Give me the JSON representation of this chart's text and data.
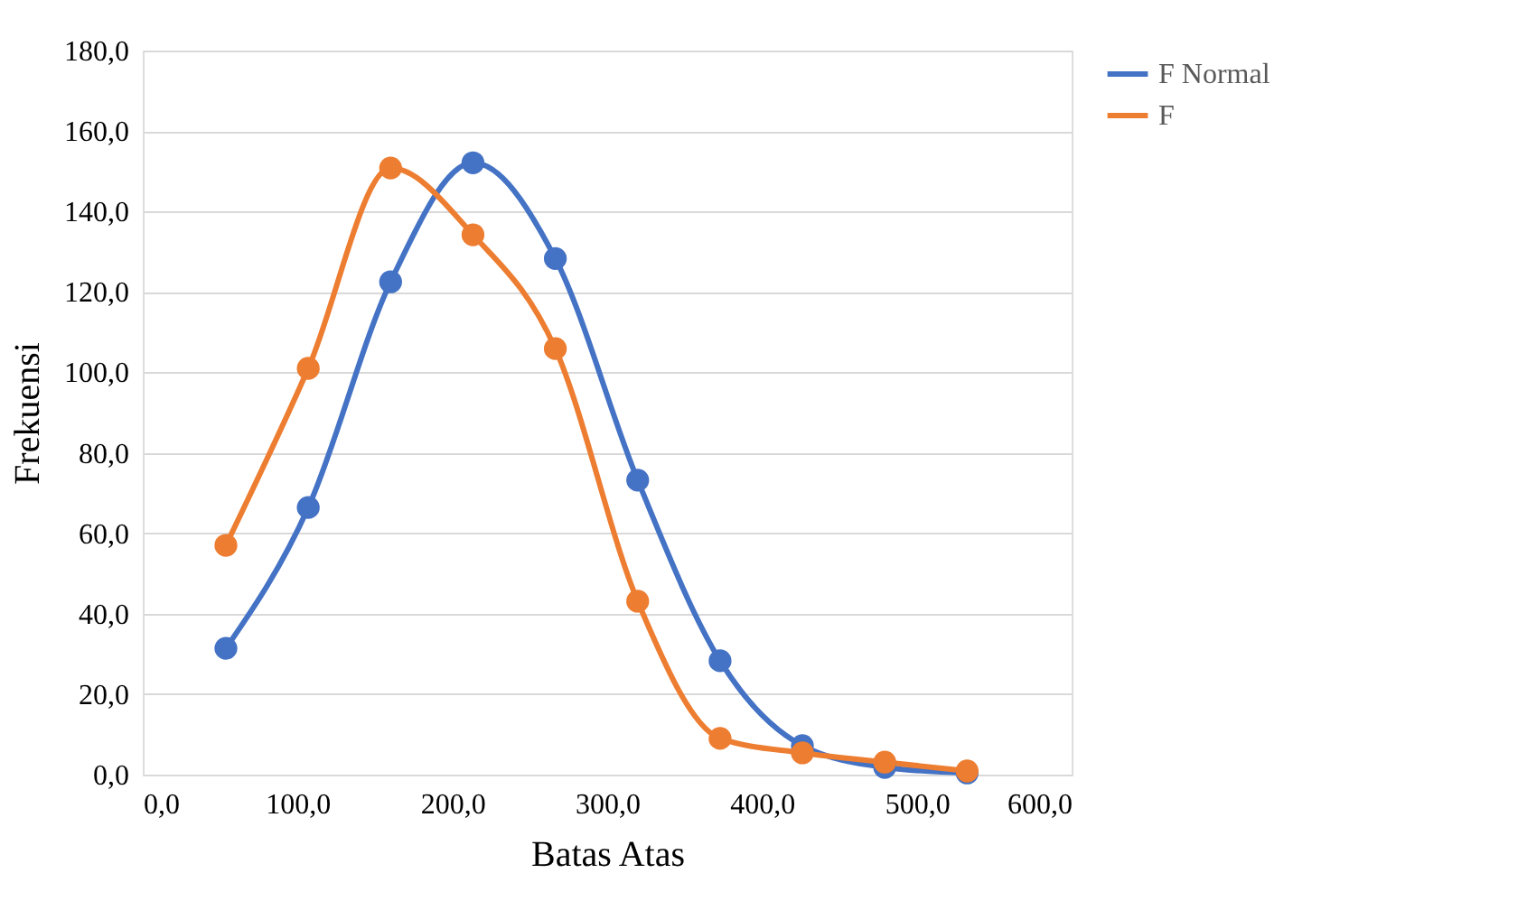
{
  "chart_data": {
    "type": "line",
    "xlabel": "Batas Atas",
    "ylabel": "Frekuensi",
    "x": [
      53.7,
      106.9,
      160.1,
      213.3,
      266.5,
      319.7,
      372.9,
      426.1,
      479.3,
      532.5
    ],
    "series": [
      {
        "name": "F Normal",
        "color": "#4472c4",
        "values": [
          31.4,
          66.4,
          122.5,
          152.1,
          128.3,
          73.2,
          28.3,
          7.2,
          1.8,
          0.4
        ]
      },
      {
        "name": "F",
        "color": "#ed7d31",
        "values": [
          57.0,
          101.0,
          150.8,
          134.2,
          105.9,
          43.1,
          9.0,
          5.4,
          3.1,
          0.9
        ]
      }
    ],
    "xlim": [
      0,
      600
    ],
    "ylim": [
      0,
      180
    ],
    "xticks": [
      {
        "value": 0,
        "label": "0,0"
      },
      {
        "value": 100,
        "label": "100,0"
      },
      {
        "value": 200,
        "label": "200,0"
      },
      {
        "value": 300,
        "label": "300,0"
      },
      {
        "value": 400,
        "label": "400,0"
      },
      {
        "value": 500,
        "label": "500,0"
      },
      {
        "value": 600,
        "label": "600,0"
      }
    ],
    "yticks": [
      {
        "value": 0,
        "label": "0,0"
      },
      {
        "value": 20,
        "label": "20,0"
      },
      {
        "value": 40,
        "label": "40,0"
      },
      {
        "value": 60,
        "label": "60,0"
      },
      {
        "value": 80,
        "label": "80,0"
      },
      {
        "value": 100,
        "label": "100,0"
      },
      {
        "value": 120,
        "label": "120,0"
      },
      {
        "value": 140,
        "label": "140,0"
      },
      {
        "value": 160,
        "label": "160,0"
      },
      {
        "value": 180,
        "label": "180,0"
      }
    ],
    "grid": "y",
    "legend": "right",
    "marker": "circle",
    "line_style": "solid"
  }
}
